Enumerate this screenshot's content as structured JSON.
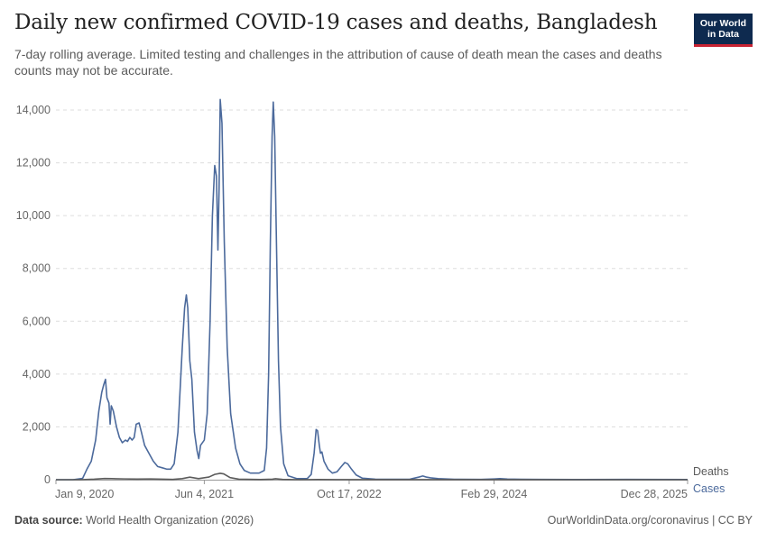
{
  "header": {
    "title": "Daily new confirmed COVID-19 cases and deaths, Bangladesh",
    "subtitle": "7-day rolling average. Limited testing and challenges in the attribution of cause of death mean the cases and deaths counts may not be accurate."
  },
  "logo": {
    "line1": "Our World",
    "line2": "in Data",
    "bg_color": "#0e2a4f",
    "accent_color": "#c82333"
  },
  "footer": {
    "source_label": "Data source:",
    "source_value": "World Health Organization (2026)",
    "credit": "OurWorldinData.org/coronavirus | CC BY"
  },
  "chart_data": {
    "type": "line",
    "title": "Daily new confirmed COVID-19 cases and deaths, Bangladesh",
    "xlabel": "",
    "ylabel": "",
    "xlim": [
      "2020-01-09",
      "2025-12-28"
    ],
    "ylim": [
      0,
      14000
    ],
    "yticks": [
      0,
      2000,
      4000,
      6000,
      8000,
      10000,
      12000,
      14000
    ],
    "ytick_labels": [
      "0",
      "2,000",
      "4,000",
      "6,000",
      "8,000",
      "10,000",
      "12,000",
      "14,000"
    ],
    "xticks": [
      "2020-01-09",
      "2021-06-04",
      "2022-10-17",
      "2024-02-29",
      "2025-12-28"
    ],
    "xtick_labels": [
      "Jan 9, 2020",
      "Jun 4, 2021",
      "Oct 17, 2022",
      "Feb 29, 2024",
      "Dec 28, 2025"
    ],
    "grid": true,
    "legend": "end-of-line labels, right",
    "series": [
      {
        "name": "Cases",
        "color": "#4c6a9c",
        "points": [
          [
            "2020-01-09",
            0
          ],
          [
            "2020-03-08",
            0
          ],
          [
            "2020-04-10",
            50
          ],
          [
            "2020-04-25",
            400
          ],
          [
            "2020-05-10",
            700
          ],
          [
            "2020-05-25",
            1500
          ],
          [
            "2020-06-05",
            2600
          ],
          [
            "2020-06-15",
            3300
          ],
          [
            "2020-06-22",
            3600
          ],
          [
            "2020-06-28",
            3800
          ],
          [
            "2020-07-03",
            3100
          ],
          [
            "2020-07-10",
            2900
          ],
          [
            "2020-07-14",
            2100
          ],
          [
            "2020-07-18",
            2800
          ],
          [
            "2020-07-25",
            2600
          ],
          [
            "2020-08-05",
            2000
          ],
          [
            "2020-08-15",
            1600
          ],
          [
            "2020-08-25",
            1400
          ],
          [
            "2020-09-05",
            1500
          ],
          [
            "2020-09-12",
            1450
          ],
          [
            "2020-09-20",
            1600
          ],
          [
            "2020-09-28",
            1500
          ],
          [
            "2020-10-05",
            1600
          ],
          [
            "2020-10-12",
            2100
          ],
          [
            "2020-10-22",
            2150
          ],
          [
            "2020-10-30",
            1800
          ],
          [
            "2020-11-10",
            1300
          ],
          [
            "2020-11-25",
            1000
          ],
          [
            "2020-12-10",
            700
          ],
          [
            "2020-12-25",
            500
          ],
          [
            "2021-01-10",
            450
          ],
          [
            "2021-01-25",
            400
          ],
          [
            "2021-02-08",
            400
          ],
          [
            "2021-02-20",
            600
          ],
          [
            "2021-03-05",
            1800
          ],
          [
            "2021-03-20",
            5000
          ],
          [
            "2021-03-28",
            6500
          ],
          [
            "2021-04-03",
            7000
          ],
          [
            "2021-04-08",
            6500
          ],
          [
            "2021-04-15",
            4500
          ],
          [
            "2021-04-22",
            3800
          ],
          [
            "2021-05-01",
            1800
          ],
          [
            "2021-05-10",
            1100
          ],
          [
            "2021-05-16",
            800
          ],
          [
            "2021-05-22",
            1300
          ],
          [
            "2021-06-04",
            1500
          ],
          [
            "2021-06-14",
            2500
          ],
          [
            "2021-06-24",
            6000
          ],
          [
            "2021-07-02",
            10000
          ],
          [
            "2021-07-10",
            11900
          ],
          [
            "2021-07-16",
            11500
          ],
          [
            "2021-07-21",
            8700
          ],
          [
            "2021-07-25",
            11000
          ],
          [
            "2021-07-29",
            14400
          ],
          [
            "2021-08-04",
            13500
          ],
          [
            "2021-08-12",
            9000
          ],
          [
            "2021-08-22",
            5000
          ],
          [
            "2021-09-03",
            2500
          ],
          [
            "2021-09-20",
            1200
          ],
          [
            "2021-10-05",
            600
          ],
          [
            "2021-10-20",
            350
          ],
          [
            "2021-11-10",
            250
          ],
          [
            "2021-12-10",
            250
          ],
          [
            "2021-12-28",
            350
          ],
          [
            "2022-01-05",
            1200
          ],
          [
            "2022-01-12",
            4000
          ],
          [
            "2022-01-18",
            9000
          ],
          [
            "2022-01-24",
            13000
          ],
          [
            "2022-01-28",
            14300
          ],
          [
            "2022-02-02",
            13000
          ],
          [
            "2022-02-08",
            9000
          ],
          [
            "2022-02-15",
            4500
          ],
          [
            "2022-02-22",
            2000
          ],
          [
            "2022-03-05",
            600
          ],
          [
            "2022-03-20",
            150
          ],
          [
            "2022-04-20",
            40
          ],
          [
            "2022-05-25",
            40
          ],
          [
            "2022-06-08",
            200
          ],
          [
            "2022-06-18",
            1000
          ],
          [
            "2022-06-25",
            1900
          ],
          [
            "2022-06-30",
            1850
          ],
          [
            "2022-07-06",
            1300
          ],
          [
            "2022-07-10",
            1000
          ],
          [
            "2022-07-15",
            1050
          ],
          [
            "2022-07-22",
            700
          ],
          [
            "2022-08-05",
            400
          ],
          [
            "2022-08-20",
            250
          ],
          [
            "2022-09-05",
            300
          ],
          [
            "2022-09-20",
            500
          ],
          [
            "2022-10-02",
            650
          ],
          [
            "2022-10-12",
            600
          ],
          [
            "2022-10-25",
            400
          ],
          [
            "2022-11-10",
            180
          ],
          [
            "2022-12-01",
            60
          ],
          [
            "2023-01-15",
            20
          ],
          [
            "2023-03-15",
            15
          ],
          [
            "2023-05-15",
            20
          ],
          [
            "2023-06-15",
            100
          ],
          [
            "2023-06-28",
            140
          ],
          [
            "2023-07-10",
            100
          ],
          [
            "2023-07-25",
            70
          ],
          [
            "2023-08-20",
            40
          ],
          [
            "2023-10-15",
            15
          ],
          [
            "2024-01-15",
            10
          ],
          [
            "2024-03-01",
            30
          ],
          [
            "2024-03-20",
            40
          ],
          [
            "2024-04-15",
            25
          ],
          [
            "2024-06-01",
            15
          ],
          [
            "2024-08-01",
            10
          ],
          [
            "2025-01-01",
            5
          ],
          [
            "2025-06-01",
            10
          ],
          [
            "2025-12-28",
            5
          ]
        ]
      },
      {
        "name": "Deaths",
        "color": "#5b5b5b",
        "points": [
          [
            "2020-01-09",
            0
          ],
          [
            "2020-04-01",
            0
          ],
          [
            "2020-05-20",
            20
          ],
          [
            "2020-06-25",
            45
          ],
          [
            "2020-07-20",
            40
          ],
          [
            "2020-09-01",
            30
          ],
          [
            "2020-10-15",
            25
          ],
          [
            "2020-12-01",
            30
          ],
          [
            "2021-01-10",
            20
          ],
          [
            "2021-02-15",
            10
          ],
          [
            "2021-03-20",
            40
          ],
          [
            "2021-04-15",
            95
          ],
          [
            "2021-05-15",
            40
          ],
          [
            "2021-06-20",
            100
          ],
          [
            "2021-07-10",
            200
          ],
          [
            "2021-07-29",
            240
          ],
          [
            "2021-08-10",
            220
          ],
          [
            "2021-09-01",
            80
          ],
          [
            "2021-10-01",
            20
          ],
          [
            "2021-12-15",
            5
          ],
          [
            "2022-01-25",
            20
          ],
          [
            "2022-02-05",
            35
          ],
          [
            "2022-03-01",
            10
          ],
          [
            "2022-05-01",
            0
          ],
          [
            "2022-07-01",
            5
          ],
          [
            "2022-09-01",
            3
          ],
          [
            "2022-11-01",
            1
          ],
          [
            "2025-12-28",
            0
          ]
        ]
      }
    ]
  }
}
